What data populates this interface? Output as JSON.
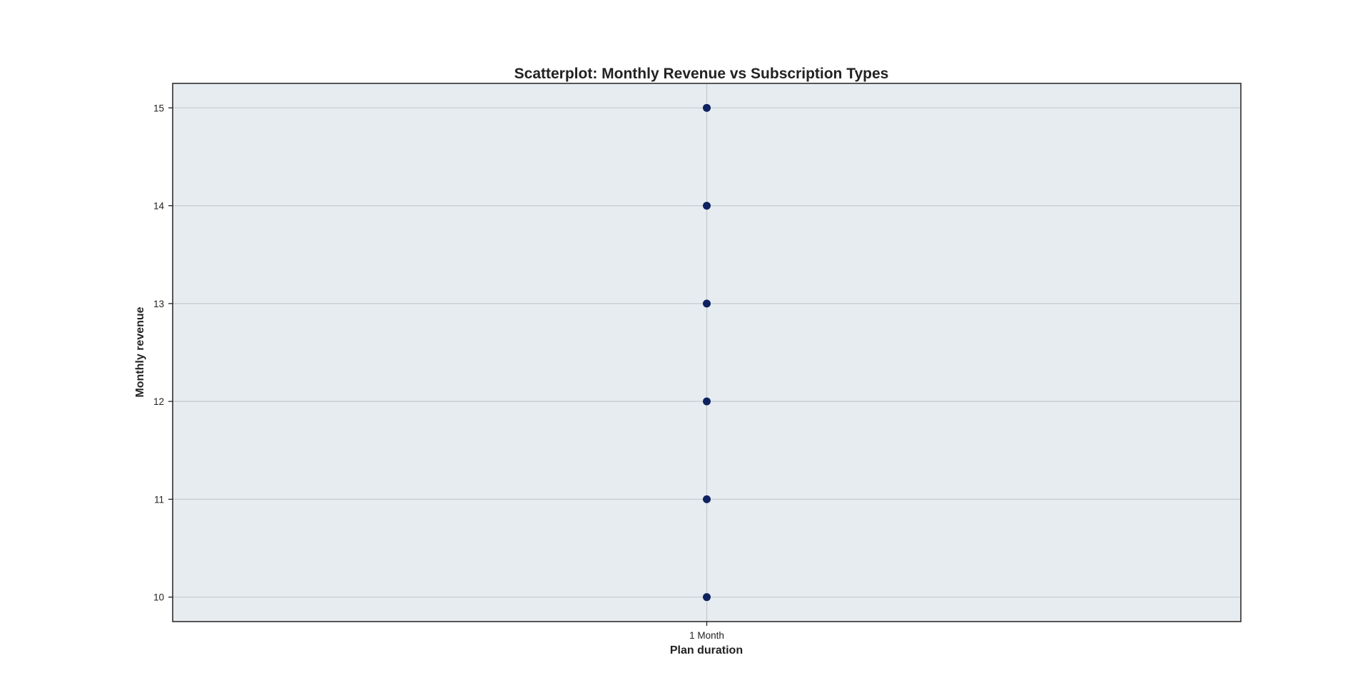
{
  "chart_data": {
    "type": "scatter",
    "title": "Scatterplot: Monthly Revenue vs Subscription Types",
    "xlabel": "Plan duration",
    "ylabel": "Monthly revenue",
    "categories": [
      "1 Month"
    ],
    "x": [
      "1 Month",
      "1 Month",
      "1 Month",
      "1 Month",
      "1 Month",
      "1 Month"
    ],
    "y": [
      10,
      11,
      12,
      13,
      14,
      15
    ],
    "ylim": [
      9.75,
      15.25
    ],
    "yticks": [
      10,
      11,
      12,
      13,
      14,
      15
    ],
    "grid": true,
    "legend": "none",
    "colors": {
      "point": "#0e2260",
      "plot_background": "#e6ecf0",
      "grid": "#c5c9cd",
      "axes": "#222222"
    }
  }
}
